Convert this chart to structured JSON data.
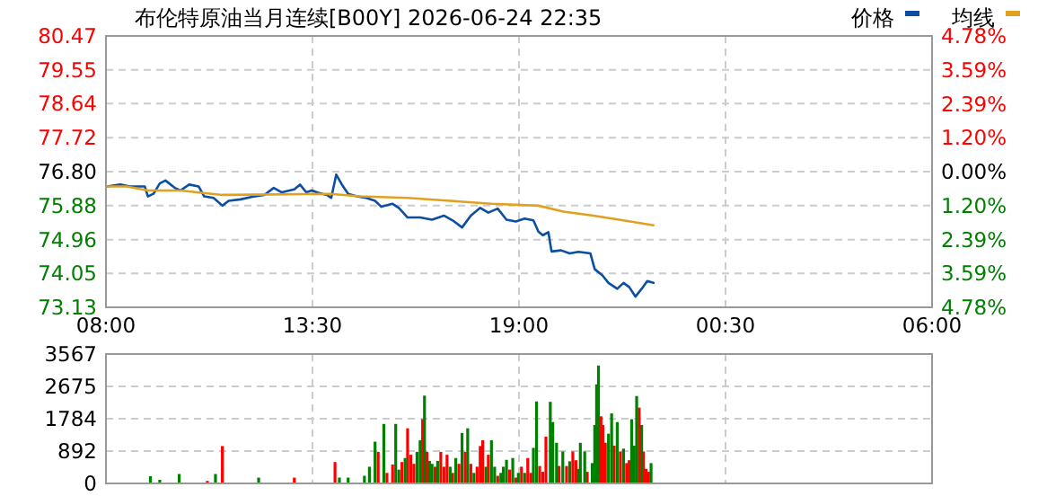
{
  "chart_data": [
    {
      "type": "line",
      "title": "布伦特原油当月连续[B00Y] 2026-06-24 22:35",
      "legend": "top right",
      "grid": true,
      "xlim": [
        "2026-06-24T08:00",
        "2026-06-25T06:00"
      ],
      "xticks": [
        {
          "value": "2026-06-24T08:00",
          "label": "08:00"
        },
        {
          "value": "2026-06-24T13:30",
          "label": "13:30"
        },
        {
          "value": "2026-06-24T19:00",
          "label": "19:00"
        },
        {
          "value": "2026-06-25T00:30",
          "label": "00:30"
        },
        {
          "value": "2026-06-25T06:00",
          "label": "06:00"
        }
      ],
      "ylim": [
        73.13,
        80.47
      ],
      "yticks": [
        73.13,
        74.05,
        74.96,
        75.88,
        {
          "value": 76.8,
          "label": "76.80"
        },
        77.72,
        78.64,
        79.55,
        80.47
      ],
      "y2lim": [
        -4.78,
        4.78
      ],
      "y2ticks": [
        {
          "value": -4.78,
          "label": "4.78%"
        },
        {
          "value": -3.59,
          "label": "3.59%"
        },
        {
          "value": -2.39,
          "label": "2.39%"
        },
        {
          "value": -1.2,
          "label": "1.20%"
        },
        {
          "value": 0,
          "label": "0.00%"
        },
        {
          "value": 1.2,
          "label": "1.20%"
        },
        {
          "value": 2.39,
          "label": "2.39%"
        },
        {
          "value": 3.59,
          "label": "3.59%"
        },
        {
          "value": 4.78,
          "label": "4.78%"
        }
      ],
      "series": [
        {
          "name": "价格",
          "color": "#0b4ea2",
          "x": [
            "2026-06-24T08:02",
            "2026-06-24T08:23",
            "2026-06-24T08:38",
            "2026-06-24T09:02",
            "2026-06-24T09:07",
            "2026-06-24T09:16",
            "2026-06-24T09:26",
            "2026-06-24T09:35",
            "2026-06-24T09:50",
            "2026-06-24T09:59",
            "2026-06-24T10:13",
            "2026-06-24T10:28",
            "2026-06-24T10:37",
            "2026-06-24T10:52",
            "2026-06-24T11:06",
            "2026-06-24T11:16",
            "2026-06-24T11:35",
            "2026-06-24T11:54",
            "2026-06-24T12:13",
            "2026-06-24T12:28",
            "2026-06-24T12:41",
            "2026-06-24T13:01",
            "2026-06-24T13:10",
            "2026-06-24T13:20",
            "2026-06-24T13:29",
            "2026-06-24T13:39",
            "2026-06-24T13:53",
            "2026-06-24T14:00",
            "2026-06-24T14:08",
            "2026-06-24T14:17",
            "2026-06-24T14:27",
            "2026-06-24T14:41",
            "2026-06-24T14:56",
            "2026-06-24T15:10",
            "2026-06-24T15:20",
            "2026-06-24T15:38",
            "2026-06-24T15:48",
            "2026-06-24T16:02",
            "2026-06-24T16:22",
            "2026-06-24T16:41",
            "2026-06-24T17:00",
            "2026-06-24T17:14",
            "2026-06-24T17:29",
            "2026-06-24T17:43",
            "2026-06-24T17:58",
            "2026-06-24T18:11",
            "2026-06-24T18:26",
            "2026-06-24T18:40",
            "2026-06-24T18:55",
            "2026-06-24T19:09",
            "2026-06-24T19:23",
            "2026-06-24T19:31",
            "2026-06-24T19:38",
            "2026-06-24T19:47",
            "2026-06-24T19:52",
            "2026-06-24T20:07",
            "2026-06-24T20:21",
            "2026-06-24T20:35",
            "2026-06-24T20:54",
            "2026-06-24T21:01",
            "2026-06-24T21:13",
            "2026-06-24T21:23",
            "2026-06-24T21:37",
            "2026-06-24T21:47",
            "2026-06-24T21:56",
            "2026-06-24T22:06",
            "2026-06-24T22:16",
            "2026-06-24T22:25",
            "2026-06-24T22:35"
          ],
          "values": [
            76.4,
            76.45,
            76.4,
            76.4,
            76.13,
            76.2,
            76.48,
            76.56,
            76.36,
            76.29,
            76.45,
            76.4,
            76.13,
            76.09,
            75.88,
            76.01,
            76.05,
            76.12,
            76.17,
            76.36,
            76.24,
            76.32,
            76.45,
            76.24,
            76.29,
            76.23,
            76.17,
            76.09,
            76.72,
            76.45,
            76.2,
            76.13,
            76.09,
            76.01,
            75.85,
            75.93,
            75.82,
            75.56,
            75.56,
            75.5,
            75.61,
            75.48,
            75.29,
            75.61,
            75.82,
            75.69,
            75.8,
            75.5,
            75.45,
            75.53,
            75.48,
            75.18,
            75.08,
            75.16,
            74.64,
            74.67,
            74.59,
            74.63,
            74.59,
            74.16,
            74.0,
            73.79,
            73.63,
            73.79,
            73.68,
            73.42,
            73.63,
            73.84,
            73.79
          ]
        },
        {
          "name": "均线",
          "color": "#e0a020",
          "x": [
            "2026-06-24T08:02",
            "2026-06-24T08:33",
            "2026-06-24T09:07",
            "2026-06-24T09:59",
            "2026-06-24T11:06",
            "2026-06-24T13:58",
            "2026-06-24T14:46",
            "2026-06-24T16:02",
            "2026-06-24T17:10",
            "2026-06-24T18:16",
            "2026-06-24T19:31",
            "2026-06-24T20:11",
            "2026-06-24T20:59",
            "2026-06-24T21:47",
            "2026-06-24T22:35"
          ],
          "values": [
            76.4,
            76.4,
            76.29,
            76.29,
            76.17,
            76.2,
            76.13,
            76.09,
            76.01,
            75.93,
            75.88,
            75.72,
            75.61,
            75.48,
            75.35
          ]
        }
      ]
    },
    {
      "type": "bar",
      "grid": true,
      "tick_labels": "y",
      "xlim": [
        "2026-06-24T08:00",
        "2026-06-25T06:00"
      ],
      "xticks": [
        {
          "value": "2026-06-24T08:00",
          "label": null
        },
        {
          "value": "2026-06-24T13:30",
          "label": null
        },
        {
          "value": "2026-06-24T19:00",
          "label": null
        },
        {
          "value": "2026-06-25T00:30",
          "label": null
        },
        {
          "value": "2026-06-25T06:00",
          "label": null
        }
      ],
      "ylim": [
        0,
        3567
      ],
      "yticks": [
        0,
        892,
        1784,
        2675,
        3567
      ],
      "series": [
        {
          "color": "#ff0000",
          "x": [
            "2026-06-24T10:42",
            "2026-06-24T11:06",
            "2026-06-24T13:01",
            "2026-06-24T14:06",
            "2026-06-24T15:15",
            "2026-06-24T15:29",
            "2026-06-24T15:38",
            "2026-06-24T15:53",
            "2026-06-24T16:02",
            "2026-06-24T16:07",
            "2026-06-24T16:12",
            "2026-06-24T16:26",
            "2026-06-24T16:33",
            "2026-06-24T16:46",
            "2026-06-24T16:55",
            "2026-06-24T17:00",
            "2026-06-24T17:05",
            "2026-06-24T17:14",
            "2026-06-24T17:24",
            "2026-06-24T17:34",
            "2026-06-24T17:43",
            "2026-06-24T17:53",
            "2026-06-24T17:58",
            "2026-06-24T18:02",
            "2026-06-24T18:11",
            "2026-06-24T18:26",
            "2026-06-24T18:45",
            "2026-06-24T18:55",
            "2026-06-24T19:04",
            "2026-06-24T19:14",
            "2026-06-24T19:19",
            "2026-06-24T19:33",
            "2026-06-24T19:38",
            "2026-06-24T19:43",
            "2026-06-24T20:04",
            "2026-06-24T20:16",
            "2026-06-24T20:26",
            "2026-06-24T20:31",
            "2026-06-24T20:49",
            "2026-06-24T21:11",
            "2026-06-24T21:14",
            "2026-06-24T21:18",
            "2026-06-24T21:32",
            "2026-06-24T21:42",
            "2026-06-24T21:52",
            "2026-06-24T21:56",
            "2026-06-24T22:12",
            "2026-06-24T22:19",
            "2026-06-24T22:23",
            "2026-06-24T22:27"
          ],
          "values": [
            70,
            1030,
            160,
            590,
            870,
            290,
            520,
            590,
            1520,
            790,
            540,
            1770,
            870,
            460,
            870,
            460,
            790,
            290,
            540,
            870,
            540,
            460,
            1030,
            1190,
            790,
            210,
            380,
            160,
            460,
            700,
            290,
            480,
            320,
            1290,
            480,
            480,
            880,
            640,
            320,
            1850,
            1610,
            1120,
            1040,
            880,
            560,
            640,
            2090,
            880,
            400,
            320
          ]
        },
        {
          "color": "#008000",
          "x": [
            "2026-06-24T09:11",
            "2026-06-24T09:26",
            "2026-06-24T09:57",
            "2026-06-24T10:55",
            "2026-06-24T12:04",
            "2026-06-24T14:13",
            "2026-06-24T14:27",
            "2026-06-24T14:53",
            "2026-06-24T15:01",
            "2026-06-24T15:10",
            "2026-06-24T15:24",
            "2026-06-24T15:43",
            "2026-06-24T15:48",
            "2026-06-24T15:58",
            "2026-06-24T16:17",
            "2026-06-24T16:22",
            "2026-06-24T16:29",
            "2026-06-24T16:37",
            "2026-06-24T16:41",
            "2026-06-24T16:50",
            "2026-06-24T17:10",
            "2026-06-24T17:19",
            "2026-06-24T17:29",
            "2026-06-24T17:38",
            "2026-06-24T17:48",
            "2026-06-24T18:07",
            "2026-06-24T18:16",
            "2026-06-24T18:21",
            "2026-06-24T18:31",
            "2026-06-24T18:35",
            "2026-06-24T18:40",
            "2026-06-24T18:50",
            "2026-06-24T18:59",
            "2026-06-24T19:09",
            "2026-06-24T19:23",
            "2026-06-24T19:28",
            "2026-06-24T19:50",
            "2026-06-24T19:54",
            "2026-06-24T20:00",
            "2026-06-24T20:10",
            "2026-06-24T20:21",
            "2026-06-24T20:35",
            "2026-06-24T20:38",
            "2026-06-24T20:45",
            "2026-06-24T20:57",
            "2026-06-24T21:01",
            "2026-06-24T21:04",
            "2026-06-24T21:07",
            "2026-06-24T21:23",
            "2026-06-24T21:28",
            "2026-06-24T21:37",
            "2026-06-24T21:47",
            "2026-06-24T22:00",
            "2026-06-24T22:04",
            "2026-06-24T22:08",
            "2026-06-24T22:16",
            "2026-06-24T22:31"
          ],
          "values": [
            200,
            100,
            260,
            260,
            160,
            160,
            160,
            210,
            460,
            1150,
            1640,
            1640,
            380,
            700,
            870,
            1190,
            2420,
            620,
            540,
            620,
            460,
            700,
            1390,
            1520,
            290,
            460,
            1190,
            460,
            290,
            460,
            650,
            700,
            290,
            290,
            980,
            2260,
            2250,
            1690,
            1120,
            880,
            610,
            400,
            1120,
            880,
            560,
            1610,
            2730,
            3250,
            1370,
            1930,
            1690,
            960,
            1770,
            1040,
            2410,
            1610,
            560
          ]
        }
      ]
    }
  ]
}
